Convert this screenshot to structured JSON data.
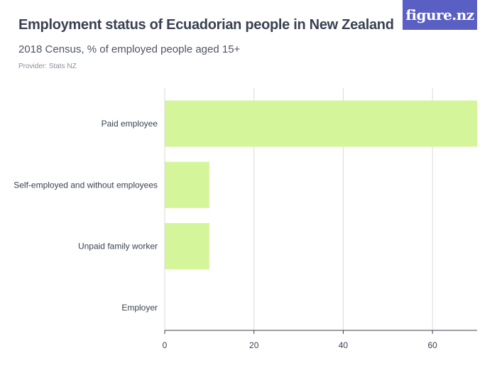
{
  "header": {
    "title": "Employment status of Ecuadorian people in New Zealand",
    "subtitle": "2018 Census, % of employed people aged 15+",
    "provider": "Provider: Stats NZ"
  },
  "logo": {
    "text": "figure.nz",
    "color": "#5a5fc4"
  },
  "chart_data": {
    "type": "bar",
    "orientation": "horizontal",
    "categories": [
      "Paid employee",
      "Self-employed and without employees",
      "Unpaid family worker",
      "Employer"
    ],
    "values": [
      70,
      10,
      10,
      0
    ],
    "xlim": [
      0,
      70
    ],
    "xticks": [
      0,
      20,
      40,
      60
    ],
    "xlabel": "",
    "ylabel": "",
    "grid": true,
    "bar_color": "#d4f59a",
    "grid_color": "#d9d9d9",
    "axis_color": "#3a4152"
  }
}
